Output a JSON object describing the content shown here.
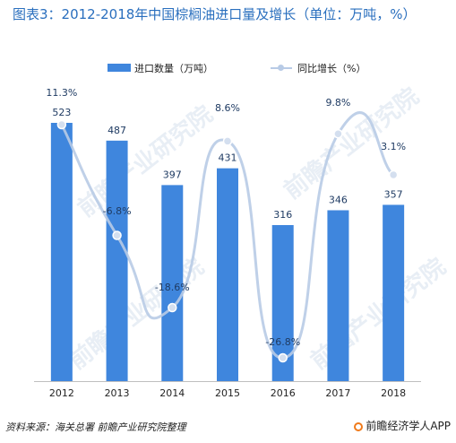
{
  "title": "图表3：2012-2018年中国棕榈油进口量及增长（单位：万吨，%）",
  "legend": {
    "bar_label": "进口数量（万吨）",
    "line_label": "同比增长（%）"
  },
  "source": "资料来源：海关总署  前瞻产业研究院整理",
  "brand": "前瞻经济学人APP",
  "watermark": "前瞻产业研究院",
  "colors": {
    "bar": "#3f86dd",
    "line": "#b8cbe6",
    "title": "#2a6fbe",
    "bar_label": "#1f3b63"
  },
  "chart_data": {
    "type": "bar",
    "categories": [
      "2012",
      "2013",
      "2014",
      "2015",
      "2016",
      "2017",
      "2018"
    ],
    "series": [
      {
        "name": "进口数量（万吨）",
        "type": "bar",
        "values": [
          523,
          487,
          397,
          431,
          316,
          346,
          357
        ],
        "labels": [
          "523",
          "487",
          "397",
          "431",
          "316",
          "346",
          "357"
        ]
      },
      {
        "name": "同比增长（%）",
        "type": "line",
        "smooth": true,
        "values": [
          11.3,
          -6.8,
          -18.6,
          8.6,
          -26.8,
          9.8,
          3.1
        ],
        "labels": [
          "11.3%",
          "-6.8%",
          "-18.6%",
          "8.6%",
          "-26.8%",
          "9.8%",
          "3.1%"
        ]
      }
    ],
    "bar_axis_range": [
      0,
      580
    ],
    "line_axis_range": [
      -30,
      12
    ],
    "grid": false,
    "legend_position": "top-center"
  }
}
